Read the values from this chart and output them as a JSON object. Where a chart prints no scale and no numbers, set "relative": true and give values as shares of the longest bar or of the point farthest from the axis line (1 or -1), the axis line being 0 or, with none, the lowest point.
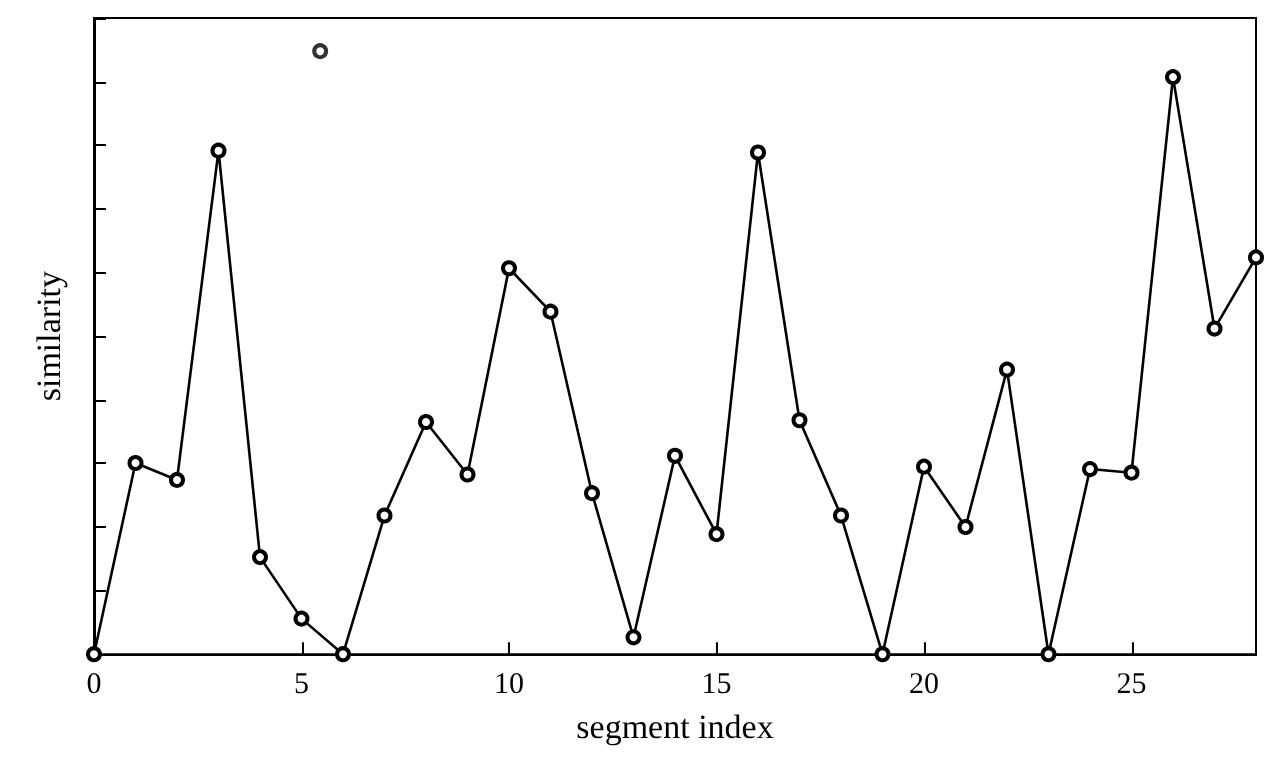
{
  "chart_data": {
    "type": "line",
    "xlabel": "segment index",
    "ylabel": "similarity",
    "relative": true,
    "xlim": [
      0,
      28
    ],
    "xticks": [
      0,
      5,
      10,
      15,
      20,
      25
    ],
    "tick_labels": "x",
    "grid": false,
    "marker": "circle",
    "line_style": "solid",
    "series": [
      {
        "color": "#000000",
        "x": [
          0,
          1,
          2,
          3,
          4,
          5,
          6,
          7,
          8,
          9,
          10,
          11,
          12,
          13,
          14,
          15,
          16,
          17,
          18,
          19,
          20,
          21,
          22,
          23,
          24,
          25,
          26,
          27,
          28
        ],
        "values": [
          0,
          0.317,
          0.289,
          0.835,
          0.161,
          0.059,
          0,
          0.23,
          0.385,
          0.298,
          0.64,
          0.568,
          0.267,
          0.028,
          0.329,
          0.199,
          0.832,
          0.388,
          0.23,
          0,
          0.311,
          0.211,
          0.472,
          0,
          0.307,
          0.301,
          0.957,
          0.54,
          0.658
        ]
      },
      {
        "type": "scatter",
        "color": "#000000",
        "x": [
          5.45
        ],
        "values": [
          1
        ]
      }
    ]
  }
}
